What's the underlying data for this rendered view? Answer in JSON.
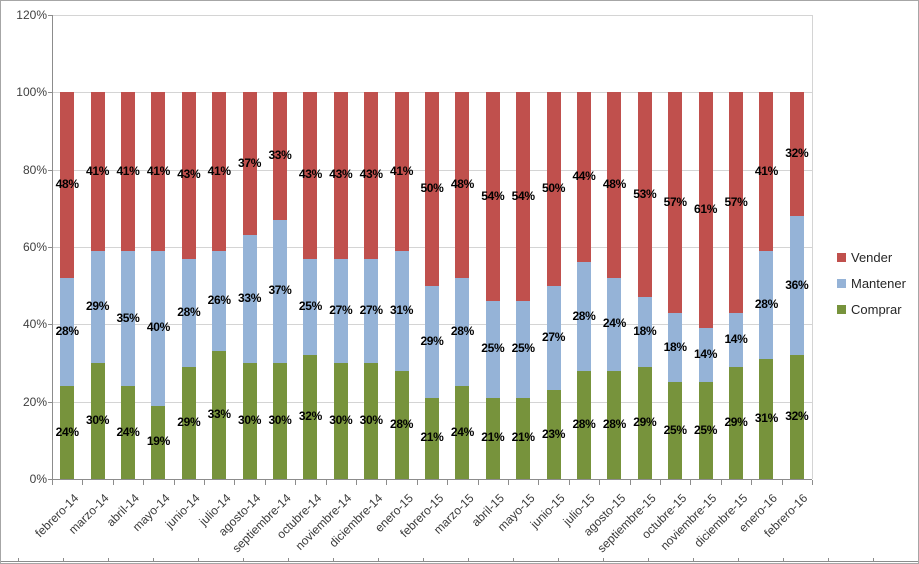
{
  "chart_data": {
    "type": "bar",
    "stacked": true,
    "stacking": "percent",
    "title": "",
    "xlabel": "",
    "ylabel": "",
    "grid": true,
    "categories": [
      "febrero-14",
      "marzo-14",
      "abril-14",
      "mayo-14",
      "junio-14",
      "julio-14",
      "agosto-14",
      "septiembre-14",
      "octubre-14",
      "noviembre-14",
      "diciembre-14",
      "enero-15",
      "febrero-15",
      "marzo-15",
      "abril-15",
      "mayo-15",
      "junio-15",
      "julio-15",
      "agosto-15",
      "septiembre-15",
      "octubre-15",
      "noviembre-15",
      "diciembre-15",
      "enero-16",
      "febrero-16"
    ],
    "series": [
      {
        "name": "Comprar",
        "color": "#77933C",
        "values": [
          24,
          30,
          24,
          19,
          29,
          33,
          30,
          30,
          32,
          30,
          30,
          28,
          21,
          24,
          21,
          21,
          23,
          28,
          28,
          29,
          25,
          25,
          29,
          31,
          32
        ]
      },
      {
        "name": "Mantener",
        "color": "#95B3D7",
        "values": [
          28,
          29,
          35,
          40,
          28,
          26,
          33,
          37,
          25,
          27,
          27,
          31,
          29,
          28,
          25,
          25,
          27,
          28,
          24,
          18,
          18,
          14,
          14,
          28,
          36
        ]
      },
      {
        "name": "Vender",
        "color": "#C0504D",
        "values": [
          48,
          41,
          41,
          41,
          43,
          41,
          37,
          33,
          43,
          43,
          43,
          41,
          50,
          48,
          54,
          54,
          50,
          44,
          48,
          53,
          57,
          61,
          57,
          41,
          32
        ]
      }
    ],
    "data_label_suffix": "%",
    "y_axis": {
      "min": 0,
      "max": 120,
      "step": 20,
      "tick_labels": [
        "0%",
        "20%",
        "40%",
        "60%",
        "80%",
        "100%",
        "120%"
      ]
    },
    "legend": {
      "position": "right",
      "entries": [
        "Vender",
        "Mantener",
        "Comprar"
      ]
    }
  },
  "colors": {
    "gridline": "#d4d4d4",
    "axis_line": "#8c8c8c",
    "frame_border": "#a6a6a6",
    "axis_text": "#3f3f3f",
    "data_label_text": "#000000"
  }
}
